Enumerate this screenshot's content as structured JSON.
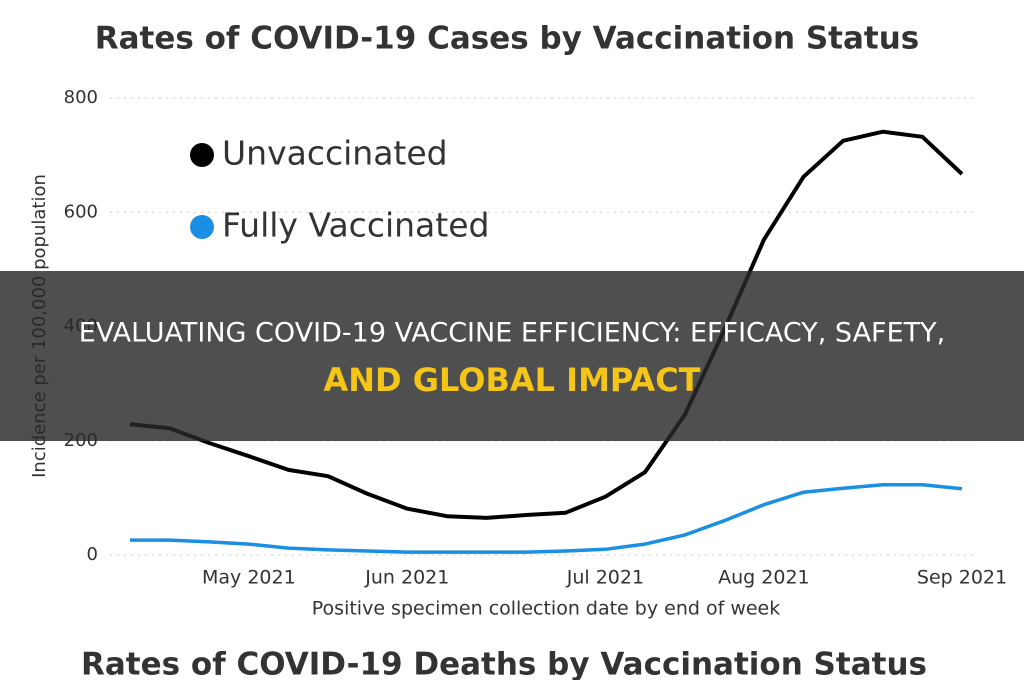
{
  "chart_data": {
    "type": "line",
    "title": "Rates of COVID-19 Cases by Vaccination Status",
    "x_label": "Positive specimen collection date by end of week",
    "y_label": "Incidence per 100,000 population",
    "categories": [
      null,
      null,
      null,
      "May 2021",
      null,
      null,
      null,
      "Jun 2021",
      null,
      null,
      null,
      null,
      "Jul 2021",
      null,
      null,
      null,
      "Aug 2021",
      null,
      null,
      null,
      null,
      "Sep 2021"
    ],
    "series": [
      {
        "name": "Unvaccinated",
        "color": "#000000",
        "values": [
          229,
          222,
          196,
          173,
          149,
          138,
          107,
          81,
          68,
          65,
          70,
          74,
          102,
          145,
          245,
          394,
          552,
          662,
          725,
          741,
          732,
          667
        ]
      },
      {
        "name": "Fully Vaccinated",
        "color": "#1a8fe3",
        "values": [
          26,
          26,
          23,
          19,
          12,
          9,
          7,
          5,
          5,
          5,
          5,
          7,
          10,
          19,
          35,
          60,
          88,
          110,
          117,
          123,
          123,
          116
        ]
      }
    ],
    "ylim": [
      0,
      800
    ],
    "yticks": [
      0,
      200,
      400,
      600,
      800
    ],
    "grid": true,
    "legend": "top-left"
  },
  "next_chart_title": "Rates of COVID-19 Deaths by Vaccination Status",
  "banner": {
    "title": "EVALUATING COVID-19 VACCINE EFFICIENCY: EFFICACY, SAFETY,",
    "highlight": "AND GLOBAL IMPACT"
  }
}
